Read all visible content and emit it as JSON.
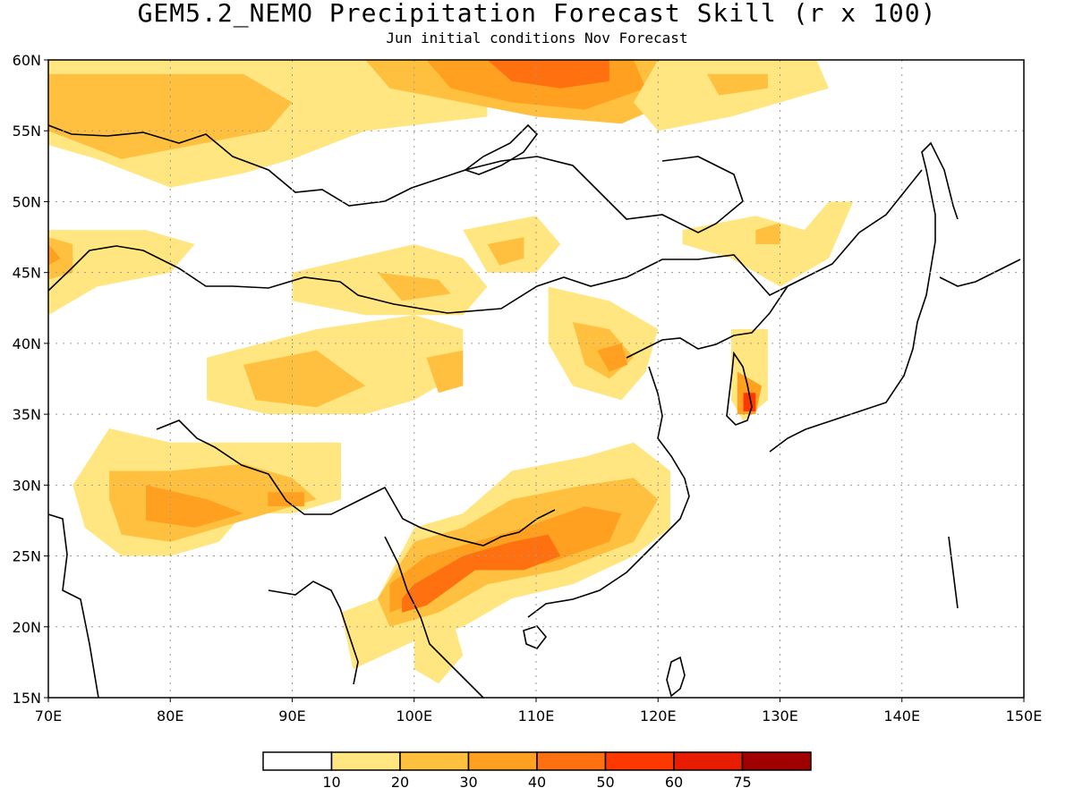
{
  "title": "GEM5.2_NEMO Precipitation Forecast Skill (r x 100)",
  "subtitle": "Jun initial conditions  Nov Forecast",
  "map": {
    "lon_range": [
      70,
      150
    ],
    "lat_range": [
      15,
      60
    ],
    "lon_ticks": [
      "70E",
      "80E",
      "90E",
      "100E",
      "110E",
      "120E",
      "130E",
      "140E",
      "150E"
    ],
    "lat_ticks": [
      "15N",
      "20N",
      "25N",
      "30N",
      "35N",
      "40N",
      "45N",
      "50N",
      "55N",
      "60N"
    ],
    "grid": "dotted",
    "regions": [
      {
        "level": 1,
        "pts": [
          [
            70,
            60
          ],
          [
            106,
            60
          ],
          [
            106,
            56
          ],
          [
            96,
            55
          ],
          [
            90,
            53
          ],
          [
            86,
            52
          ],
          [
            80,
            51
          ],
          [
            74,
            53
          ],
          [
            70,
            54
          ]
        ]
      },
      {
        "level": 2,
        "pts": [
          [
            70,
            59
          ],
          [
            86,
            59
          ],
          [
            90,
            57
          ],
          [
            88,
            55
          ],
          [
            82,
            54
          ],
          [
            76,
            53
          ],
          [
            70,
            55
          ]
        ]
      },
      {
        "level": 2,
        "pts": [
          [
            96,
            60
          ],
          [
            120,
            60
          ],
          [
            121,
            57
          ],
          [
            117,
            55.5
          ],
          [
            110,
            56
          ],
          [
            104,
            57
          ],
          [
            98,
            58
          ]
        ]
      },
      {
        "level": 3,
        "pts": [
          [
            101,
            60
          ],
          [
            118,
            60
          ],
          [
            119,
            58
          ],
          [
            114,
            56.5
          ],
          [
            108,
            57
          ],
          [
            103,
            58
          ]
        ]
      },
      {
        "level": 4,
        "pts": [
          [
            106,
            60
          ],
          [
            116,
            60
          ],
          [
            116,
            58.5
          ],
          [
            112,
            58
          ],
          [
            108,
            58.5
          ]
        ]
      },
      {
        "level": 1,
        "pts": [
          [
            120,
            60
          ],
          [
            133,
            60
          ],
          [
            134,
            58
          ],
          [
            130,
            57
          ],
          [
            126,
            56
          ],
          [
            120,
            55
          ],
          [
            118,
            57
          ]
        ]
      },
      {
        "level": 2,
        "pts": [
          [
            124,
            59
          ],
          [
            129,
            59
          ],
          [
            129,
            58
          ],
          [
            125,
            57.5
          ]
        ]
      },
      {
        "level": 1,
        "pts": [
          [
            70,
            48
          ],
          [
            78,
            48
          ],
          [
            82,
            47
          ],
          [
            80,
            45
          ],
          [
            74,
            44
          ],
          [
            70,
            42
          ]
        ]
      },
      {
        "level": 2,
        "pts": [
          [
            70,
            47.5
          ],
          [
            72,
            47
          ],
          [
            72,
            45
          ],
          [
            70,
            44.5
          ]
        ]
      },
      {
        "level": 3,
        "pts": [
          [
            70,
            47
          ],
          [
            71,
            46
          ],
          [
            70,
            45.5
          ]
        ]
      },
      {
        "level": 1,
        "pts": [
          [
            90,
            45
          ],
          [
            100,
            47
          ],
          [
            104,
            46
          ],
          [
            106,
            44
          ],
          [
            104,
            42
          ],
          [
            96,
            42
          ],
          [
            90,
            43
          ]
        ]
      },
      {
        "level": 2,
        "pts": [
          [
            97,
            45
          ],
          [
            102,
            44.5
          ],
          [
            103,
            43.5
          ],
          [
            99,
            43
          ]
        ]
      },
      {
        "level": 1,
        "pts": [
          [
            104,
            48
          ],
          [
            110,
            49
          ],
          [
            112,
            47
          ],
          [
            110,
            45
          ],
          [
            106,
            45
          ]
        ]
      },
      {
        "level": 2,
        "pts": [
          [
            106,
            47
          ],
          [
            109,
            47.5
          ],
          [
            109,
            46
          ],
          [
            107,
            45.5
          ]
        ]
      },
      {
        "level": 1,
        "pts": [
          [
            122,
            48
          ],
          [
            128,
            49
          ],
          [
            132,
            48
          ],
          [
            134,
            50
          ],
          [
            136,
            50
          ],
          [
            134,
            46
          ],
          [
            130,
            44
          ],
          [
            126,
            46
          ],
          [
            122,
            47
          ]
        ]
      },
      {
        "level": 2,
        "pts": [
          [
            128,
            48
          ],
          [
            130,
            48.5
          ],
          [
            130,
            47
          ],
          [
            128,
            47
          ]
        ]
      },
      {
        "level": 1,
        "pts": [
          [
            83,
            39
          ],
          [
            92,
            41
          ],
          [
            100,
            42
          ],
          [
            104,
            41
          ],
          [
            104,
            38
          ],
          [
            100,
            36
          ],
          [
            96,
            35
          ],
          [
            88,
            35
          ],
          [
            83,
            36
          ]
        ]
      },
      {
        "level": 2,
        "pts": [
          [
            86,
            38.5
          ],
          [
            92,
            39.5
          ],
          [
            96,
            37
          ],
          [
            92,
            35.5
          ],
          [
            87,
            36
          ]
        ]
      },
      {
        "level": 2,
        "pts": [
          [
            101,
            39
          ],
          [
            104,
            39.5
          ],
          [
            104,
            37
          ],
          [
            102,
            36.5
          ]
        ]
      },
      {
        "level": 1,
        "pts": [
          [
            111,
            44
          ],
          [
            116,
            43
          ],
          [
            120,
            41
          ],
          [
            119,
            38
          ],
          [
            117,
            36
          ],
          [
            113,
            37
          ],
          [
            111,
            40
          ]
        ]
      },
      {
        "level": 2,
        "pts": [
          [
            113,
            41.5
          ],
          [
            116,
            41
          ],
          [
            118,
            39
          ],
          [
            116,
            37.5
          ],
          [
            114,
            38.5
          ]
        ]
      },
      {
        "level": 3,
        "pts": [
          [
            115,
            39.5
          ],
          [
            117,
            40
          ],
          [
            117.5,
            38.5
          ],
          [
            116,
            38
          ]
        ]
      },
      {
        "level": 1,
        "pts": [
          [
            126,
            41
          ],
          [
            129,
            41
          ],
          [
            129,
            36
          ],
          [
            127,
            34.5
          ],
          [
            126,
            36
          ]
        ]
      },
      {
        "level": 3,
        "pts": [
          [
            126.5,
            38
          ],
          [
            128.5,
            37
          ],
          [
            128,
            35
          ],
          [
            126.5,
            35
          ]
        ]
      },
      {
        "level": 5,
        "pts": [
          [
            127,
            36.5
          ],
          [
            128,
            36.5
          ],
          [
            128,
            35.2
          ],
          [
            127,
            35.2
          ]
        ]
      },
      {
        "level": 1,
        "pts": [
          [
            75,
            34
          ],
          [
            80,
            33
          ],
          [
            88,
            33
          ],
          [
            94,
            33
          ],
          [
            94,
            29
          ],
          [
            90,
            28
          ],
          [
            86,
            28
          ],
          [
            84,
            26
          ],
          [
            80,
            25
          ],
          [
            76,
            25
          ],
          [
            73,
            27
          ],
          [
            72,
            30
          ]
        ]
      },
      {
        "level": 2,
        "pts": [
          [
            75,
            31
          ],
          [
            80,
            31
          ],
          [
            86,
            31.5
          ],
          [
            90,
            30.5
          ],
          [
            92,
            29
          ],
          [
            88,
            28
          ],
          [
            84,
            27
          ],
          [
            80,
            26
          ],
          [
            76,
            26.5
          ],
          [
            75,
            29
          ]
        ]
      },
      {
        "level": 3,
        "pts": [
          [
            78,
            30
          ],
          [
            83,
            29
          ],
          [
            86,
            28
          ],
          [
            82,
            27
          ],
          [
            78,
            27.5
          ]
        ]
      },
      {
        "level": 3,
        "pts": [
          [
            88,
            29.5
          ],
          [
            91,
            29.5
          ],
          [
            91,
            28.5
          ],
          [
            88,
            28.5
          ]
        ]
      },
      {
        "level": 1,
        "pts": [
          [
            97,
            22
          ],
          [
            100,
            27
          ],
          [
            104,
            28
          ],
          [
            108,
            31
          ],
          [
            114,
            32
          ],
          [
            118,
            33
          ],
          [
            121,
            31
          ],
          [
            121,
            27
          ],
          [
            118,
            25
          ],
          [
            113,
            23
          ],
          [
            108,
            22
          ],
          [
            104,
            20
          ],
          [
            100,
            19
          ],
          [
            95,
            17
          ],
          [
            94,
            21
          ]
        ]
      },
      {
        "level": 2,
        "pts": [
          [
            97,
            22
          ],
          [
            100,
            26
          ],
          [
            104,
            27
          ],
          [
            108,
            29
          ],
          [
            114,
            30
          ],
          [
            118,
            30.5
          ],
          [
            120,
            29
          ],
          [
            118,
            26
          ],
          [
            112,
            24
          ],
          [
            106,
            23
          ],
          [
            102,
            21
          ],
          [
            98,
            20
          ]
        ]
      },
      {
        "level": 3,
        "pts": [
          [
            98,
            23
          ],
          [
            101,
            25
          ],
          [
            105,
            26
          ],
          [
            109,
            27
          ],
          [
            114,
            28.5
          ],
          [
            117,
            28
          ],
          [
            116,
            26
          ],
          [
            111,
            24.5
          ],
          [
            105,
            24
          ],
          [
            101,
            22
          ],
          [
            98,
            21
          ]
        ]
      },
      {
        "level": 4,
        "pts": [
          [
            99,
            22
          ],
          [
            100,
            23
          ],
          [
            102,
            24
          ],
          [
            104,
            25
          ],
          [
            108,
            26
          ],
          [
            111,
            26.5
          ],
          [
            112,
            25
          ],
          [
            109,
            24
          ],
          [
            105,
            24
          ],
          [
            101,
            21.5
          ],
          [
            99,
            21
          ]
        ]
      },
      {
        "level": 1,
        "pts": [
          [
            100,
            20
          ],
          [
            103,
            21
          ],
          [
            104,
            18
          ],
          [
            102,
            16
          ],
          [
            100,
            17
          ]
        ]
      }
    ]
  },
  "colorbar": {
    "labels": [
      "10",
      "20",
      "30",
      "40",
      "50",
      "60",
      "75"
    ],
    "colors": [
      "#ffffff",
      "#ffe680",
      "#ffc040",
      "#ffa020",
      "#ff7010",
      "#ff3800",
      "#e81c00",
      "#a00000"
    ]
  }
}
